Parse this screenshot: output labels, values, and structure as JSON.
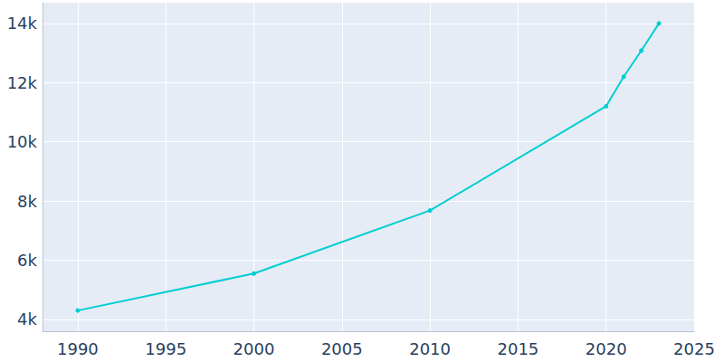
{
  "chart_data": {
    "type": "line",
    "x": [
      1990,
      2000,
      2010,
      2020,
      2021,
      2022,
      2023
    ],
    "values": [
      4300,
      5550,
      7680,
      11200,
      12200,
      13080,
      14000
    ],
    "color": "#00ced1",
    "marker": "circle",
    "xlim": [
      1988,
      2025
    ],
    "xticks": [
      1990,
      1995,
      2000,
      2005,
      2010,
      2015,
      2020,
      2025
    ],
    "ylim": [
      3600,
      14700
    ],
    "yticks": [
      {
        "value": 4000,
        "label": "4k"
      },
      {
        "value": 6000,
        "label": "6k"
      },
      {
        "value": 8000,
        "label": "8k"
      },
      {
        "value": 10000,
        "label": "10k"
      },
      {
        "value": 12000,
        "label": "12k"
      },
      {
        "value": 14000,
        "label": "14k"
      }
    ],
    "grid": true
  }
}
